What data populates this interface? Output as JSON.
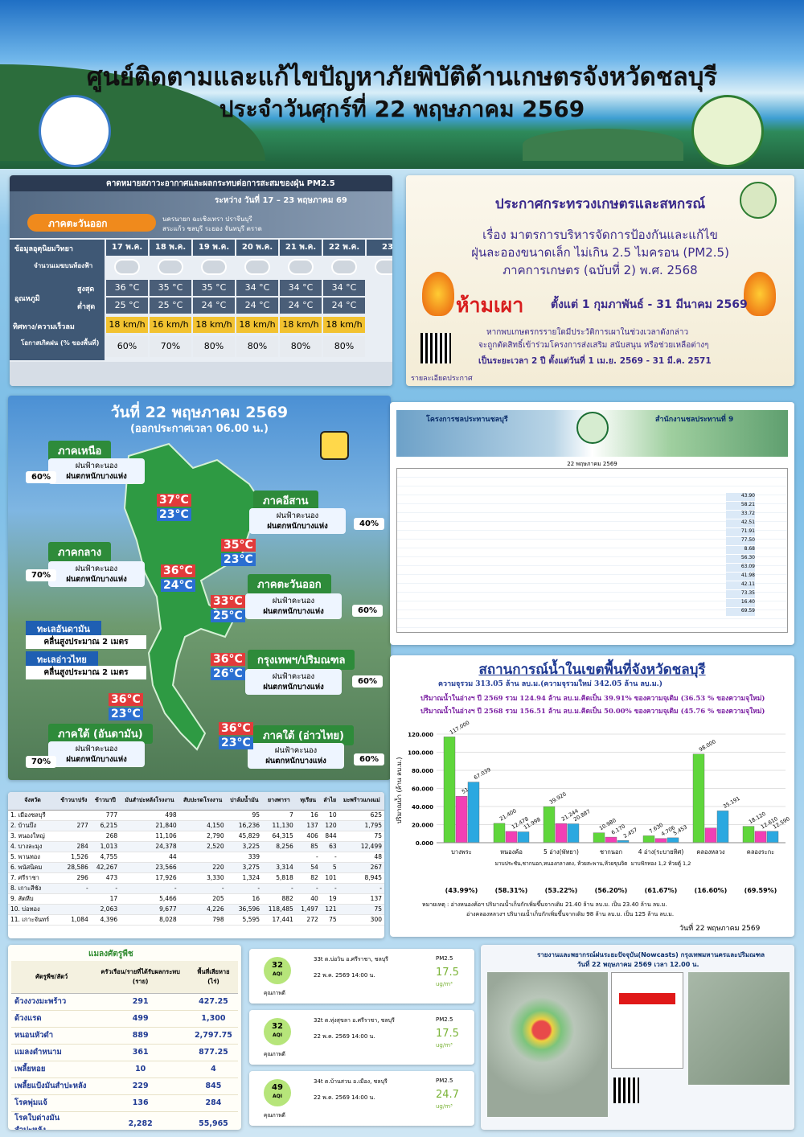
{
  "header": {
    "title": "ศูนย์ติดตามและแก้ไขปัญหาภัยพิบัติด้านเกษตรจังหวัดชลบุรี",
    "subtitle": "ประจำวันศุกร์ที่ 22 พฤษภาคม 2569"
  },
  "forecast": {
    "title": "คาดหมายสภาวะอากาศและผลกระทบต่อการสะสมของฝุ่น PM2.5",
    "period": "ระหว่าง วันที่ 17 – 23 พฤษภาคม 69",
    "region": "ภาคตะวันออก",
    "provinces": [
      "นครนายก ฉะเชิงเทรา ปราจีนบุรี",
      "สระแก้ว ชลบุรี ระยอง จันทบุรี ตราด"
    ],
    "row_labels": {
      "info": "ข้อมูลอุตุนิยมวิทยา",
      "clouds": "จำนวนเมฆบนท้องฟ้า",
      "temp": "อุณหภูมิ",
      "max": "สูงสุด",
      "min": "ต่ำสุด",
      "wind": "ทิศทาง/ความเร็วลม",
      "rain": "โอกาสเกิดฝน (% ของพื้นที่)"
    },
    "days": [
      "17 พ.ค.",
      "18 พ.ค.",
      "19 พ.ค.",
      "20 พ.ค.",
      "21 พ.ค.",
      "22 พ.ค.",
      "23"
    ],
    "max": [
      "36 °C",
      "35 °C",
      "35 °C",
      "34 °C",
      "34 °C",
      "34 °C",
      null
    ],
    "min": [
      "25 °C",
      "25 °C",
      "24 °C",
      "24 °C",
      "24 °C",
      "24 °C",
      null
    ],
    "wind": [
      "18 km/h",
      "16 km/h",
      "18 km/h",
      "18 km/h",
      "18 km/h",
      "18 km/h",
      null
    ],
    "rain": [
      "60%",
      "70%",
      "80%",
      "80%",
      "80%",
      "80%",
      null
    ]
  },
  "announcement": {
    "heading": "ประกาศกระทรวงเกษตรและสหกรณ์",
    "lines": [
      "เรื่อง มาตรการบริหารจัดการป้องกันและแก้ไข",
      "ฝุ่นละอองขนาดเล็ก ไม่เกิน 2.5 ไมครอน (PM2.5)",
      "ภาคการเกษตร (ฉบับที่ 2) พ.ศ. 2568"
    ],
    "ban": "ห้ามเผา",
    "ban_period": "ตั้งแต่ 1 กุมภาพันธ์ - 31 มีนาคม 2569",
    "notes": [
      "หากพบเกษตรกรรายใดมีประวัติการเผาในช่วงเวลาดังกล่าว",
      "จะถูกตัดสิทธิ์เข้าร่วมโครงการส่งเสริม สนับสนุน หรือช่วยเหลือต่างๆ",
      "เป็นระยะเวลา 2 ปี ตั้งแต่วันที่ 1 เม.ย. 2569 - 31 มี.ค. 2571"
    ],
    "detail": "รายละเอียดประกาศ"
  },
  "regional": {
    "date": "วันที่ 22 พฤษภาคม 2569",
    "issued": "(ออกประกาศเวลา 06.00 น.)",
    "regions": [
      {
        "name": "ภาคเหนือ",
        "rain": "60%",
        "weather": [
          "ฝนฟ้าคะนอง",
          "ฝนตกหนักบางแห่ง"
        ],
        "max": "37°C",
        "min": "23°C"
      },
      {
        "name": "ภาคอีสาน",
        "rain": "40%",
        "weather": [
          "ฝนฟ้าคะนอง",
          "ฝนตกหนักบางแห่ง"
        ],
        "max": "35°C",
        "min": "23°C"
      },
      {
        "name": "ภาคกลาง",
        "rain": "70%",
        "weather": [
          "ฝนฟ้าคะนอง",
          "ฝนตกหนักบางแห่ง"
        ],
        "max": "36°C",
        "min": "24°C"
      },
      {
        "name": "ภาคตะวันออก",
        "rain": "60%",
        "weather": [
          "ฝนฟ้าคะนอง",
          "ฝนตกหนักบางแห่ง"
        ],
        "max": "33°C",
        "min": "25°C"
      },
      {
        "name": "กรุงเทพฯ/ปริมณฑล",
        "rain": "60%",
        "weather": [
          "ฝนฟ้าคะนอง",
          "ฝนตกหนักบางแห่ง"
        ],
        "max": "36°C",
        "min": "26°C"
      },
      {
        "name": "ภาคใต้ (อันดามัน)",
        "rain": "70%",
        "weather": [
          "ฝนฟ้าคะนอง",
          "ฝนตกหนักบางแห่ง"
        ],
        "max": "36°C",
        "min": "23°C"
      },
      {
        "name": "ภาคใต้ (อ่าวไทย)",
        "rain": "60%",
        "weather": [
          "ฝนฟ้าคะนอง",
          "ฝนตกหนักบางแห่ง"
        ],
        "max": "36°C",
        "min": "23°C"
      }
    ],
    "seas": [
      {
        "name": "ทะเลอันดามัน",
        "wave": "คลื่นสูงประมาณ 2 เมตร"
      },
      {
        "name": "ทะเลอ่าวไทย",
        "wave": "คลื่นสูงประมาณ 2 เมตร"
      }
    ]
  },
  "reservoir_table": {
    "project": "โครงการชลประทานชลบุรี",
    "office": "สำนักงานชลประทานที่ 9",
    "date": "22 พฤษภาคม 2569",
    "percent_column": [
      "43.90",
      "58.21",
      "33.72",
      "42.51",
      "71.91",
      "77.50",
      "8.68",
      "56.30",
      "63.09",
      "41.98",
      "42.11",
      "73.35",
      "16.40",
      "69.59"
    ]
  },
  "water": {
    "title": "สถานการณ์น้ำในเขตพื้นที่จังหวัดชลบุรี",
    "capacity": "ความจุรวม 313.05 ล้าน ลบ.ม.(ความจุรวมใหม่ 342.05 ล้าน ลบ.ม.)",
    "lines": [
      "ปริมาณน้ำในอ่างฯ ปี 2569 รวม 124.94 ล้าน ลบ.ม.คิดเป็น 39.91% ของความจุเดิม (36.53 % ของความจุใหม่)",
      "ปริมาณน้ำในอ่างฯ ปี 2568 รวม 156.51 ล้าน ลบ.ม.คิดเป็น 50.00% ของความจุเดิม (45.76 % ของความจุใหม่)"
    ],
    "chart": {
      "type": "bar",
      "y_label": "ปริมาณน้ำ (ล้าน ลบ.ม.)",
      "categories": [
        "บางพระ",
        "หนองค้อ",
        "5 อ่าง(พัทยา)",
        "ชากนอก",
        "4 อ่าง(ระบายทิศ)",
        "คลองหลวง",
        "คลองระกะ"
      ],
      "sublabels": [
        "มาบประชัน,ชากนอก,หนองกลางดง, ห้วยสะพาน,ห้วยขุนจิต",
        "มาบฟักทอง 1,2 ห้วยตู้ 1,2"
      ],
      "series": [
        {
          "color": "#5fd63b",
          "values": [
            117,
            21.4,
            39.92,
            10.98,
            7.63,
            98,
            18.12
          ],
          "value_labels": [
            "117.000",
            "21.400",
            "39.920",
            "10.980",
            "7.630",
            "98.000",
            "18.120"
          ]
        },
        {
          "color": "#f23fb5",
          "values": [
            51.4,
            12.478,
            21.244,
            6.17,
            4.706,
            16.3,
            12.61
          ],
          "value_labels": [
            "51.400",
            "12.478",
            "21.244",
            "6.170",
            "4.706",
            null,
            "12.610"
          ]
        },
        {
          "color": "#2ba8e0",
          "values": [
            67.039,
            11.998,
            20.887,
            2.457,
            5.453,
            35.191,
            12.59
          ],
          "value_labels": [
            "67.039",
            "11.998",
            "20.887",
            "2.457",
            "5.453",
            "35.191",
            "12.590"
          ]
        }
      ],
      "ylim": [
        0,
        120
      ],
      "yticks": [
        {
          "value": 0,
          "label": "0.000"
        },
        {
          "value": 20,
          "label": "20.000"
        },
        {
          "value": 40,
          "label": "40.000"
        },
        {
          "value": 60,
          "label": "60.000"
        },
        {
          "value": 80,
          "label": "80.000"
        },
        {
          "value": 100,
          "label": "100.000"
        },
        {
          "value": 120,
          "label": "120.000"
        }
      ],
      "percents": [
        "(43.99%)",
        "(58.31%)",
        "(53.22%)",
        "(56.20%)",
        "(61.67%)",
        "(16.60%)",
        "(69.59%)"
      ]
    },
    "notes": [
      "หมายเหตุ : อ่างหนองค้อฯ ปริมาณน้ำเก็บกักเพิ่มขึ้นจากเดิม 21.40 ล้าน ลบ.ม. เป็น 23.40 ล้าน ลบ.ม.",
      "อ่างคลองหลวงฯ ปริมาณน้ำเก็บกักเพิ่มขึ้นจากเดิม 98 ล้าน ลบ.ม. เป็น 125 ล้าน ลบ.ม."
    ],
    "date": "วันที่ 22 พฤษภาคม 2569"
  },
  "crops": {
    "columns": [
      "จังหวัด",
      "ข้าวนาปรัง",
      "ข้าวนาปี",
      "มันสำปะหลังโรงงาน",
      "สับปะรดโรงงาน",
      "ปาล์มน้ำมัน",
      "ยางพารา",
      "ทุเรียน",
      "ลำไย",
      "มะพร้าวแกงแม่"
    ],
    "rows": [
      [
        "1. เมืองชลบุรี",
        null,
        "777",
        "498",
        null,
        "95",
        "7",
        "16",
        "10",
        "625"
      ],
      [
        "2. บ้านบึง",
        "277",
        "6,215",
        "21,840",
        "4,150",
        "16,236",
        "11,130",
        "137",
        "120",
        "1,795"
      ],
      [
        "3. หนองใหญ่",
        null,
        "268",
        "11,106",
        "2,790",
        "45,829",
        "64,315",
        "406",
        "844",
        "75"
      ],
      [
        "4. บางละมุง",
        "284",
        "1,013",
        "24,378",
        "2,520",
        "3,225",
        "8,256",
        "85",
        "63",
        "12,499"
      ],
      [
        "5. พานทอง",
        "1,526",
        "4,755",
        "44",
        null,
        "339",
        null,
        "-",
        "-",
        "48"
      ],
      [
        "6. พนัสนิคม",
        "28,586",
        "42,267",
        "23,566",
        "220",
        "3,275",
        "3,314",
        "54",
        "5",
        "267"
      ],
      [
        "7. ศรีราชา",
        "296",
        "473",
        "17,926",
        "3,330",
        "1,324",
        "5,818",
        "82",
        "101",
        "8,945"
      ],
      [
        "8. เกาะสีชัง",
        "-",
        "-",
        "-",
        "-",
        "-",
        "-",
        "-",
        "-",
        "-"
      ],
      [
        "9. สัตหีบ",
        null,
        "17",
        "5,466",
        "205",
        "16",
        "882",
        "40",
        "19",
        "137"
      ],
      [
        "10. บ่อทอง",
        null,
        "2,063",
        "9,677",
        "4,226",
        "36,596",
        "118,485",
        "1,497",
        "121",
        "75"
      ],
      [
        "11. เกาะจันทร์",
        "1,084",
        "4,396",
        "8,028",
        "798",
        "5,595",
        "17,441",
        "272",
        "75",
        "300"
      ]
    ]
  },
  "pests": {
    "title": "แมลงศัตรูพืช",
    "columns": [
      "ศัตรูพืช/สัตว์",
      "ครัวเรือน/รายที่ได้รับผลกระทบ (ราย)",
      "พื้นที่เสียหาย (ไร่)"
    ],
    "rows": [
      [
        "ด้วงงวงมะพร้าว",
        "291",
        "427.25"
      ],
      [
        "ด้วงแรด",
        "499",
        "1,300"
      ],
      [
        "หนอนหัวดำ",
        "889",
        "2,797.75"
      ],
      [
        "แมลงดำหนาม",
        "361",
        "877.25"
      ],
      [
        "เพลี้ยหอย",
        "10",
        "4"
      ],
      [
        "เพลี้ยแป้งมันสำปะหลัง",
        "229",
        "845"
      ],
      [
        "โรคพุ่มแจ้",
        "136",
        "284"
      ],
      [
        "โรคใบด่างมันสำปะหลัง",
        "2,282",
        "55,965"
      ]
    ]
  },
  "pm25": {
    "label": "PM2.5",
    "unit": "ug/m³",
    "aqi_label": "AQI",
    "cards": [
      {
        "station": "33t ต.บ่อวิน อ.ศรีราชา, ชลบุรี",
        "time": "22 พ.ค. 2569 14:00 น.",
        "value": "17.5",
        "aqi": "32",
        "quality": "คุณภาพดี"
      },
      {
        "station": "32t ต.ทุ่งสุขลา อ.ศรีราชา, ชลบุรี",
        "time": "22 พ.ค. 2569 14:00 น.",
        "value": "17.5",
        "aqi": "32",
        "quality": "คุณภาพดี"
      },
      {
        "station": "34t ต.บ้านสวน อ.เมือง, ชลบุรี",
        "time": "22 พ.ค. 2569 14:00 น.",
        "value": "24.7",
        "aqi": "49",
        "quality": "คุณภาพดี"
      }
    ]
  },
  "nowcast": {
    "title": "รายงานและพยากรณ์ฝนระยะปัจจุบัน(Nowcasts) กรุงเทพมหานครและปริมณฑล",
    "date": "วันที่ 22 พฤษภาคม 2569 เวลา 12.00 น."
  }
}
